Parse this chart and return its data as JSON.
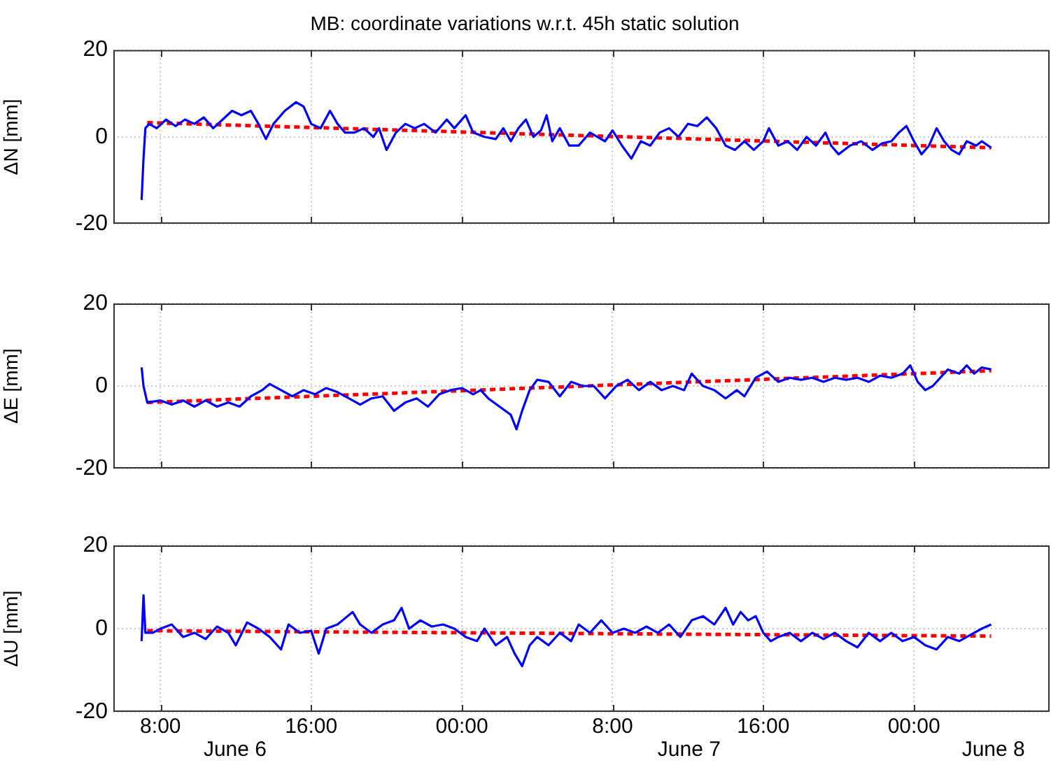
{
  "chart_data": [
    {
      "type": "line",
      "title": "MB: coordinate variations w.r.t. 45h static solution",
      "ylabel": "ΔN [mm]",
      "xlim": [
        "--06-06T05:30",
        "--06-08T07:12"
      ],
      "ylim": [
        -20,
        20
      ],
      "yticks": [
        -20,
        0,
        20
      ],
      "xticks": [
        {
          "value": "--06-06T08:00",
          "label": null
        },
        {
          "value": "--06-06T16:00",
          "label": null
        },
        {
          "value": "--06-07T00:00",
          "label": null
        },
        {
          "value": "--06-07T08:00",
          "label": null
        },
        {
          "value": "--06-07T16:00",
          "label": null
        },
        {
          "value": "--06-08T00:00",
          "label": null
        }
      ],
      "grid": true,
      "tick_labels": "y",
      "series": [
        {
          "color": "#0000ff",
          "line_style": "solid",
          "x": [
            "--06-06T07:00",
            "--06-06T07:06",
            "--06-06T07:12",
            "--06-06T07:24",
            "--06-06T07:48",
            "--06-06T08:18",
            "--06-06T08:48",
            "--06-06T09:18",
            "--06-06T09:48",
            "--06-06T10:18",
            "--06-06T10:48",
            "--06-06T11:18",
            "--06-06T11:48",
            "--06-06T12:18",
            "--06-06T12:48",
            "--06-06T13:12",
            "--06-06T13:36",
            "--06-06T14:00",
            "--06-06T14:36",
            "--06-06T15:12",
            "--06-06T15:36",
            "--06-06T16:00",
            "--06-06T16:30",
            "--06-06T17:00",
            "--06-06T17:24",
            "--06-06T17:48",
            "--06-06T18:18",
            "--06-06T18:48",
            "--06-06T19:18",
            "--06-06T19:36",
            "--06-06T20:00",
            "--06-06T20:30",
            "--06-06T21:00",
            "--06-06T21:30",
            "--06-06T22:00",
            "--06-06T22:36",
            "--06-06T23:12",
            "--06-06T23:36",
            "--06-07T00:12",
            "--06-07T00:36",
            "--06-07T01:12",
            "--06-07T01:48",
            "--06-07T02:12",
            "--06-07T02:36",
            "--06-07T03:00",
            "--06-07T03:24",
            "--06-07T03:48",
            "--06-07T04:12",
            "--06-07T04:30",
            "--06-07T04:48",
            "--06-07T05:12",
            "--06-07T05:42",
            "--06-07T06:12",
            "--06-07T06:48",
            "--06-07T07:12",
            "--06-07T07:36",
            "--06-07T08:00",
            "--06-07T08:30",
            "--06-07T09:00",
            "--06-07T09:30",
            "--06-07T10:00",
            "--06-07T10:30",
            "--06-07T11:00",
            "--06-07T11:30",
            "--06-07T12:00",
            "--06-07T12:30",
            "--06-07T13:00",
            "--06-07T13:30",
            "--06-07T14:00",
            "--06-07T14:30",
            "--06-07T15:00",
            "--06-07T15:30",
            "--06-07T16:00",
            "--06-07T16:18",
            "--06-07T16:48",
            "--06-07T17:18",
            "--06-07T17:48",
            "--06-07T18:18",
            "--06-07T18:48",
            "--06-07T19:18",
            "--06-07T19:36",
            "--06-07T20:00",
            "--06-07T20:36",
            "--06-07T21:12",
            "--06-07T21:48",
            "--06-07T22:18",
            "--06-07T22:48",
            "--06-07T23:12",
            "--06-07T23:36",
            "--06-08T00:00",
            "--06-08T00:24",
            "--06-08T00:48",
            "--06-08T01:12",
            "--06-08T01:36",
            "--06-08T02:00",
            "--06-08T02:24",
            "--06-08T02:48",
            "--06-08T03:18",
            "--06-08T03:36",
            "--06-08T04:06"
          ],
          "values": [
            -14.5,
            -5,
            2,
            3,
            2,
            4,
            2.5,
            4,
            3,
            4.5,
            2,
            4,
            6,
            5,
            6,
            3,
            -0.5,
            3,
            6,
            8,
            7,
            3,
            2,
            6,
            3,
            1,
            1,
            2,
            0,
            2,
            -3,
            1,
            3,
            2,
            3,
            1,
            4,
            2,
            5,
            1,
            0,
            -0.5,
            2,
            -1,
            2,
            4,
            0,
            1.5,
            5,
            -1,
            2,
            -2,
            -2,
            1,
            0,
            -1,
            1.5,
            -2,
            -5,
            -1,
            -2,
            1,
            2,
            0,
            3,
            2.5,
            4.5,
            2,
            -2,
            -3,
            -1,
            -3,
            -1,
            2,
            -2,
            -1,
            -3,
            0,
            -2,
            1,
            -2,
            -4,
            -2,
            -1,
            -3,
            -1.5,
            -1,
            1,
            2.5,
            -1,
            -4,
            -2,
            2,
            -1,
            -3,
            -4,
            -1,
            -2,
            -1,
            -2.5
          ]
        },
        {
          "color": "#ff0000",
          "line_style": "dashed",
          "x": [
            "--06-06T07:18",
            "--06-08T04:06"
          ],
          "values": [
            3.3,
            -2.5
          ]
        }
      ]
    },
    {
      "type": "line",
      "ylabel": "ΔE [mm]",
      "xlim": [
        "--06-06T05:30",
        "--06-08T07:12"
      ],
      "ylim": [
        -20,
        20
      ],
      "yticks": [
        -20,
        0,
        20
      ],
      "xticks": [
        {
          "value": "--06-06T08:00",
          "label": null
        },
        {
          "value": "--06-06T16:00",
          "label": null
        },
        {
          "value": "--06-07T00:00",
          "label": null
        },
        {
          "value": "--06-07T08:00",
          "label": null
        },
        {
          "value": "--06-07T16:00",
          "label": null
        },
        {
          "value": "--06-08T00:00",
          "label": null
        }
      ],
      "grid": true,
      "tick_labels": "y",
      "series": [
        {
          "color": "#0000ff",
          "line_style": "solid",
          "x": [
            "--06-06T07:00",
            "--06-06T07:06",
            "--06-06T07:18",
            "--06-06T08:00",
            "--06-06T08:36",
            "--06-06T09:12",
            "--06-06T09:48",
            "--06-06T10:24",
            "--06-06T11:00",
            "--06-06T11:36",
            "--06-06T12:12",
            "--06-06T12:48",
            "--06-06T13:24",
            "--06-06T13:48",
            "--06-06T14:24",
            "--06-06T15:00",
            "--06-06T15:36",
            "--06-06T16:12",
            "--06-06T16:48",
            "--06-06T17:24",
            "--06-06T18:00",
            "--06-06T18:36",
            "--06-06T19:12",
            "--06-06T19:48",
            "--06-06T20:24",
            "--06-06T21:00",
            "--06-06T21:36",
            "--06-06T22:12",
            "--06-06T22:48",
            "--06-06T23:24",
            "--06-07T00:00",
            "--06-07T00:36",
            "--06-07T01:00",
            "--06-07T01:24",
            "--06-07T02:00",
            "--06-07T02:36",
            "--06-07T02:54",
            "--06-07T03:12",
            "--06-07T03:36",
            "--06-07T04:00",
            "--06-07T04:36",
            "--06-07T05:12",
            "--06-07T05:48",
            "--06-07T06:24",
            "--06-07T07:00",
            "--06-07T07:36",
            "--06-07T08:12",
            "--06-07T08:48",
            "--06-07T09:24",
            "--06-07T10:00",
            "--06-07T10:36",
            "--06-07T11:12",
            "--06-07T11:48",
            "--06-07T12:12",
            "--06-07T12:48",
            "--06-07T13:24",
            "--06-07T14:00",
            "--06-07T14:36",
            "--06-07T15:00",
            "--06-07T15:36",
            "--06-07T16:12",
            "--06-07T16:48",
            "--06-07T17:24",
            "--06-07T18:00",
            "--06-07T18:36",
            "--06-07T19:12",
            "--06-07T19:48",
            "--06-07T20:24",
            "--06-07T21:00",
            "--06-07T21:36",
            "--06-07T22:12",
            "--06-07T22:48",
            "--06-07T23:24",
            "--06-07T23:48",
            "--06-08T00:12",
            "--06-08T00:36",
            "--06-08T01:00",
            "--06-08T01:24",
            "--06-08T01:48",
            "--06-08T02:24",
            "--06-08T02:48",
            "--06-08T03:12",
            "--06-08T03:36",
            "--06-08T04:06"
          ],
          "values": [
            4.5,
            0,
            -4,
            -3.5,
            -4.5,
            -3.5,
            -5,
            -3.5,
            -5,
            -4,
            -5,
            -2.5,
            -1,
            0.5,
            -1,
            -2.5,
            -1,
            -2,
            -0.5,
            -1.5,
            -3,
            -4.5,
            -3,
            -2.5,
            -6,
            -4,
            -3,
            -5,
            -2,
            -1,
            -0.5,
            -2,
            -1,
            -3,
            -5,
            -7,
            -10.5,
            -6,
            -1,
            1.5,
            1,
            -2.5,
            1,
            0,
            0,
            -3,
            0,
            1.5,
            -1,
            1,
            -1,
            0,
            -1,
            3,
            0,
            -1,
            -3,
            -1,
            -2.5,
            2,
            3.5,
            1,
            2,
            1.5,
            2,
            1,
            2,
            1.5,
            2,
            1,
            2.5,
            2,
            3,
            5,
            1,
            -1,
            0,
            2,
            4,
            3,
            5,
            3,
            4.5,
            4
          ]
        },
        {
          "color": "#ff0000",
          "line_style": "dashed",
          "x": [
            "--06-06T07:18",
            "--06-08T04:06"
          ],
          "values": [
            -4,
            3.7
          ]
        }
      ]
    },
    {
      "type": "line",
      "ylabel": "ΔU [mm]",
      "xlim": [
        "--06-06T05:30",
        "--06-08T07:12"
      ],
      "ylim": [
        -20,
        20
      ],
      "yticks": [
        -20,
        0,
        20
      ],
      "xticks": [
        {
          "value": "--06-06T08:00",
          "label": "8:00"
        },
        {
          "value": "--06-06T16:00",
          "label": "16:00"
        },
        {
          "value": "--06-07T00:00",
          "label": "00:00"
        },
        {
          "value": "--06-07T08:00",
          "label": "8:00"
        },
        {
          "value": "--06-07T16:00",
          "label": "16:00"
        },
        {
          "value": "--06-08T00:00",
          "label": "00:00"
        }
      ],
      "grid": true,
      "annotations": [
        "June 6",
        "June 7",
        "June 8"
      ],
      "series": [
        {
          "color": "#0000ff",
          "line_style": "solid",
          "x": [
            "--06-06T07:00",
            "--06-06T07:06",
            "--06-06T07:12",
            "--06-06T07:36",
            "--06-06T08:00",
            "--06-06T08:36",
            "--06-06T09:12",
            "--06-06T09:48",
            "--06-06T10:24",
            "--06-06T11:00",
            "--06-06T11:36",
            "--06-06T12:00",
            "--06-06T12:36",
            "--06-06T13:12",
            "--06-06T13:48",
            "--06-06T14:24",
            "--06-06T14:48",
            "--06-06T15:24",
            "--06-06T16:00",
            "--06-06T16:24",
            "--06-06T16:48",
            "--06-06T17:24",
            "--06-06T17:48",
            "--06-06T18:12",
            "--06-06T18:36",
            "--06-06T19:12",
            "--06-06T19:48",
            "--06-06T20:24",
            "--06-06T20:48",
            "--06-06T21:12",
            "--06-06T21:48",
            "--06-06T22:24",
            "--06-06T23:00",
            "--06-06T23:36",
            "--06-07T00:12",
            "--06-07T00:48",
            "--06-07T01:12",
            "--06-07T01:48",
            "--06-07T02:24",
            "--06-07T02:48",
            "--06-07T03:12",
            "--06-07T03:36",
            "--06-07T04:00",
            "--06-07T04:36",
            "--06-07T05:12",
            "--06-07T05:48",
            "--06-07T06:12",
            "--06-07T06:48",
            "--06-07T07:24",
            "--06-07T08:00",
            "--06-07T08:36",
            "--06-07T09:12",
            "--06-07T09:48",
            "--06-07T10:24",
            "--06-07T11:00",
            "--06-07T11:36",
            "--06-07T12:12",
            "--06-07T12:48",
            "--06-07T13:24",
            "--06-07T14:00",
            "--06-07T14:24",
            "--06-07T14:48",
            "--06-07T15:12",
            "--06-07T15:36",
            "--06-07T16:00",
            "--06-07T16:24",
            "--06-07T16:48",
            "--06-07T17:24",
            "--06-07T18:00",
            "--06-07T18:36",
            "--06-07T19:12",
            "--06-07T19:48",
            "--06-07T20:24",
            "--06-07T21:00",
            "--06-07T21:36",
            "--06-07T22:12",
            "--06-07T22:48",
            "--06-07T23:24",
            "--06-08T00:00",
            "--06-08T00:36",
            "--06-08T01:12",
            "--06-08T01:48",
            "--06-08T02:24",
            "--06-08T03:00",
            "--06-08T03:36",
            "--06-08T04:06"
          ],
          "values": [
            -3,
            8,
            -1,
            -1,
            0,
            1,
            -2,
            -1,
            -2.5,
            0.5,
            -1,
            -4,
            1.5,
            0,
            -2,
            -5,
            1,
            -1,
            -0.5,
            -6,
            0,
            1,
            2.5,
            4,
            1,
            -1,
            1,
            2,
            5,
            0,
            2,
            0.5,
            1,
            0,
            -2,
            -3,
            0,
            -4,
            -2,
            -6,
            -9,
            -4,
            -2,
            -4,
            -1,
            -3,
            1,
            -1,
            2,
            -1,
            0,
            -1,
            0.5,
            -1,
            1,
            -2,
            2,
            3,
            1,
            5,
            1,
            4,
            2,
            3,
            -1,
            -3,
            -2,
            -1,
            -3,
            -1,
            -2.5,
            -1,
            -3,
            -4.5,
            -1,
            -3,
            -1,
            -3,
            -2,
            -4,
            -5,
            -2,
            -3,
            -1.5,
            0,
            1
          ]
        },
        {
          "color": "#ff0000",
          "line_style": "dashed",
          "x": [
            "--06-06T07:18",
            "--06-08T04:06"
          ],
          "values": [
            -0.5,
            -1.8
          ]
        }
      ]
    }
  ]
}
